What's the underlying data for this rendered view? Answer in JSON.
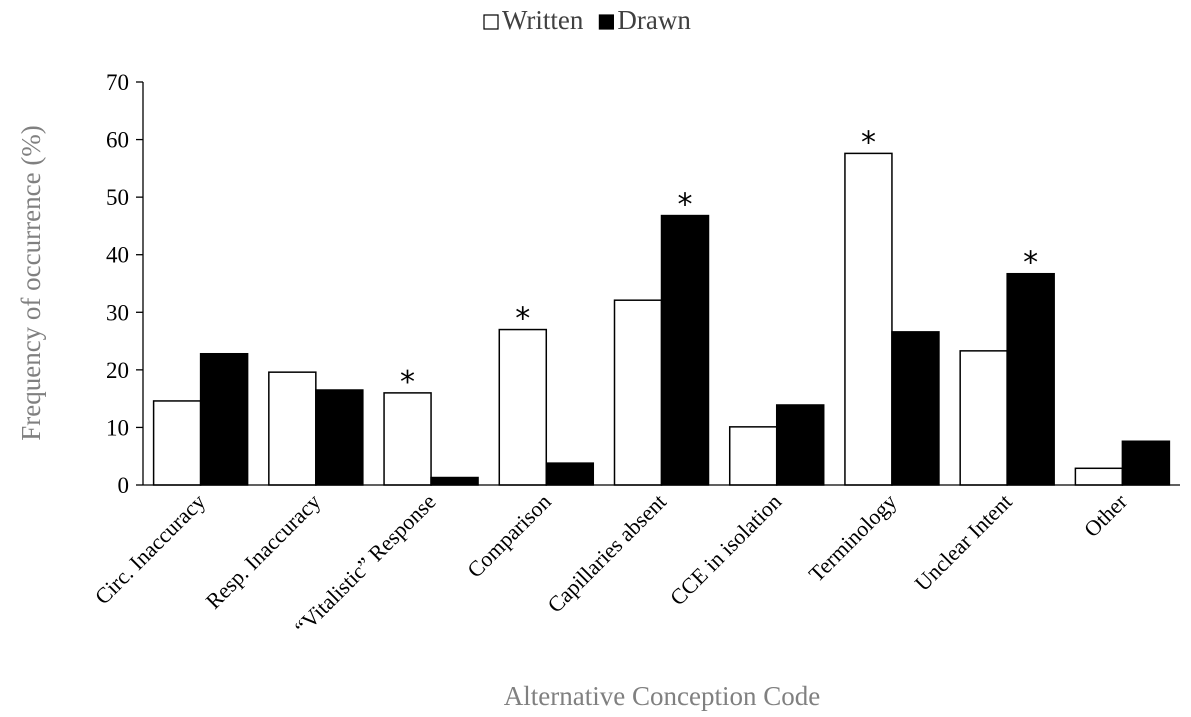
{
  "chart_data": {
    "type": "bar",
    "title": "",
    "xlabel": "Alternative Conception Code",
    "ylabel": "Frequency of occurrence (%)",
    "ylim": [
      0,
      70
    ],
    "yticks": [
      0,
      10,
      20,
      30,
      40,
      50,
      60,
      70
    ],
    "grid": false,
    "legend_position": "top-center",
    "categories": [
      "Circ. Inaccuracy",
      "Resp. Inaccuracy",
      "“Vitalistic” Response",
      "Comparison",
      "Capillaries absent",
      "CCE in isolation",
      "Terminology",
      "Unclear Intent",
      "Other"
    ],
    "series": [
      {
        "name": "Written",
        "color": "#ffffff",
        "values": [
          14.6,
          19.6,
          16.0,
          27.0,
          32.1,
          10.1,
          57.6,
          23.3,
          2.9
        ]
      },
      {
        "name": "Drawn",
        "color": "#000000",
        "values": [
          22.8,
          16.5,
          1.3,
          3.8,
          46.8,
          13.9,
          26.6,
          36.7,
          7.6
        ]
      }
    ],
    "significance_marker": "*",
    "significance": [
      {
        "category_index": 2,
        "series_index": 0
      },
      {
        "category_index": 3,
        "series_index": 0
      },
      {
        "category_index": 4,
        "series_index": 1
      },
      {
        "category_index": 6,
        "series_index": 0
      },
      {
        "category_index": 7,
        "series_index": 1
      }
    ]
  }
}
